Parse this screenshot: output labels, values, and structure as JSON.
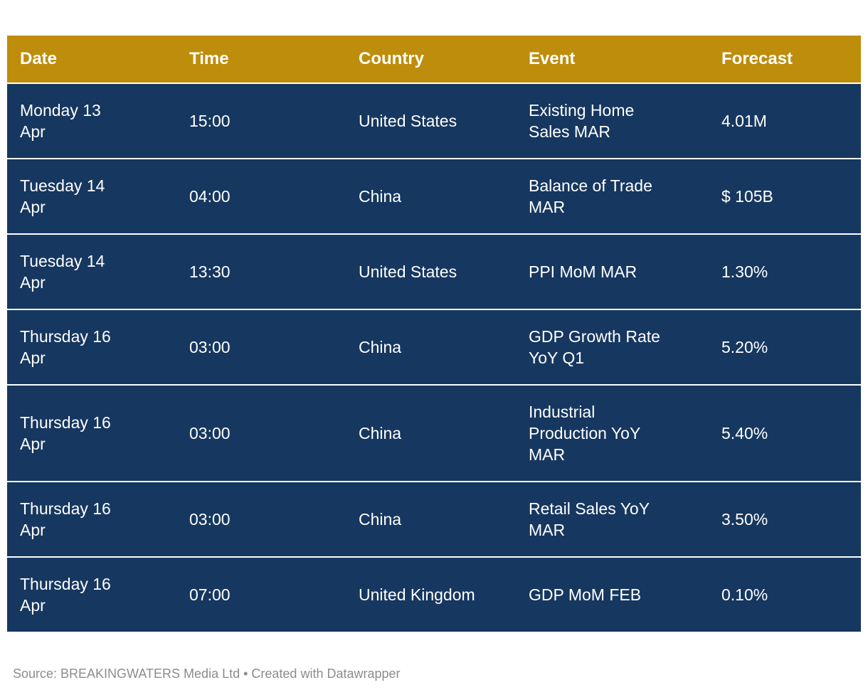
{
  "chart_data": {
    "type": "table",
    "columns": [
      "Date",
      "Time",
      "Country",
      "Event",
      "Forecast"
    ],
    "rows": [
      {
        "date": "Monday 13 Apr",
        "time": "15:00",
        "country": "United States",
        "event": "Existing Home Sales MAR",
        "forecast": "4.01M"
      },
      {
        "date": "Tuesday 14 Apr",
        "time": "04:00",
        "country": "China",
        "event": "Balance of Trade MAR",
        "forecast": "$ 105B"
      },
      {
        "date": "Tuesday 14 Apr",
        "time": "13:30",
        "country": "United States",
        "event": "PPI MoM MAR",
        "forecast": "1.30%"
      },
      {
        "date": "Thursday 16 Apr",
        "time": "03:00",
        "country": "China",
        "event": "GDP Growth Rate YoY Q1",
        "forecast": "5.20%"
      },
      {
        "date": "Thursday 16 Apr",
        "time": "03:00",
        "country": "China",
        "event": "Industrial Production YoY MAR",
        "forecast": "5.40%"
      },
      {
        "date": "Thursday 16 Apr",
        "time": "03:00",
        "country": "China",
        "event": "Retail Sales YoY MAR",
        "forecast": "3.50%"
      },
      {
        "date": "Thursday 16 Apr",
        "time": "07:00",
        "country": "United Kingdom",
        "event": "GDP MoM FEB",
        "forecast": "0.10%"
      }
    ]
  },
  "footer": {
    "text": "Source: BREAKINGWATERS Media Ltd • Created with Datawrapper"
  },
  "colors": {
    "header_bg": "#BE8D0B",
    "row_bg": "#16375F",
    "header_text": "#FFFFFF",
    "row_text": "#FFFFFF",
    "row_divider": "#FFFFFF",
    "footer_text": "#8C8C8C"
  }
}
